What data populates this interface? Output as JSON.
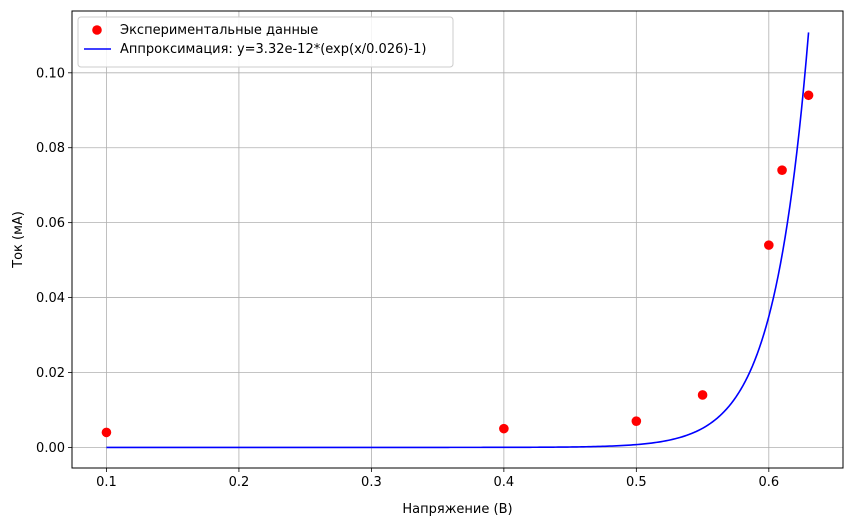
{
  "chart_data": {
    "type": "scatter",
    "xlabel": "Напряжение (В)",
    "ylabel": "Ток (мА)",
    "xlim": [
      0.074,
      0.656
    ],
    "ylim": [
      -0.0055,
      0.1165
    ],
    "x_ticks": [
      0.1,
      0.2,
      0.3,
      0.4,
      0.5,
      0.6
    ],
    "y_ticks": [
      0.0,
      0.02,
      0.04,
      0.06,
      0.08,
      0.1
    ],
    "x_tick_labels": [
      "0.1",
      "0.2",
      "0.3",
      "0.4",
      "0.5",
      "0.6"
    ],
    "y_tick_labels": [
      "0.00",
      "0.02",
      "0.04",
      "0.06",
      "0.08",
      "0.10"
    ],
    "grid": true,
    "legend_position": "top-left",
    "series": [
      {
        "name": "Экспериментальные данные",
        "kind": "scatter",
        "color": "#ff0000",
        "x": [
          0.1,
          0.4,
          0.5,
          0.55,
          0.6,
          0.61,
          0.63
        ],
        "y": [
          0.004,
          0.005,
          0.007,
          0.014,
          0.054,
          0.074,
          0.094
        ]
      },
      {
        "name": "Аппроксимация: y=3.32e-12*(exp(x/0.026)-1)",
        "kind": "line",
        "color": "#0000ff",
        "function": {
          "a": 3.32e-12,
          "b": 0.026
        },
        "x_range": [
          0.1,
          0.63
        ]
      }
    ]
  }
}
